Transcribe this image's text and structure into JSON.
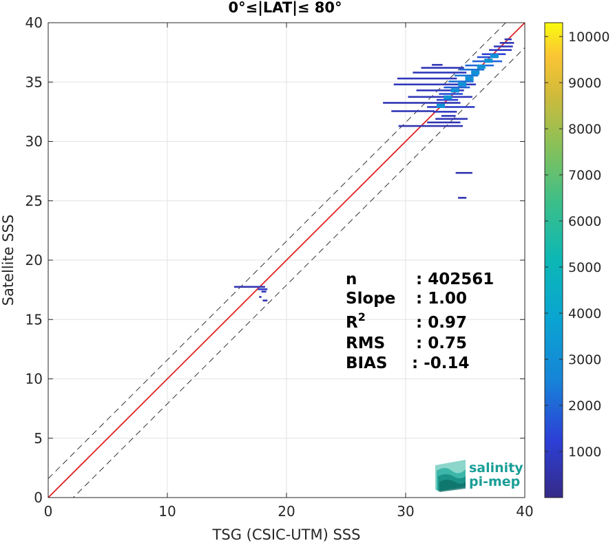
{
  "chart_data": {
    "type": "heatmap",
    "title": "0°≤|LAT|≤ 80°",
    "xlabel": "TSG (CSIC-UTM) SSS",
    "ylabel": "Satellite SSS",
    "xlim": [
      0,
      40
    ],
    "ylim": [
      0,
      40
    ],
    "xticks": [
      "0",
      "10",
      "20",
      "30",
      "40"
    ],
    "yticks": [
      "0",
      "5",
      "10",
      "15",
      "20",
      "25",
      "30",
      "35",
      "40"
    ],
    "grid": true,
    "reference_lines": [
      {
        "kind": "one-to-one",
        "intercept": 0,
        "slope": 1,
        "color": "#e02020",
        "style": "solid"
      },
      {
        "kind": "offset-upper",
        "intercept": 1.6,
        "slope": 1,
        "color": "#333333",
        "style": "dashed"
      },
      {
        "kind": "offset-lower",
        "intercept": -2.1,
        "slope": 1,
        "color": "#333333",
        "style": "dashed"
      }
    ],
    "colorbar": {
      "min": 0,
      "max": 10300,
      "ticks": [
        "1000",
        "2000",
        "3000",
        "4000",
        "5000",
        "6000",
        "7000",
        "8000",
        "9000",
        "10000"
      ],
      "tick_values": [
        1000,
        2000,
        3000,
        4000,
        5000,
        6000,
        7000,
        8000,
        9000,
        10000
      ],
      "colormap": "parula"
    },
    "density_cells": [
      {
        "x0": 15.6,
        "x1": 18.2,
        "y": 17.75,
        "count": 150
      },
      {
        "x0": 17.6,
        "x1": 18.4,
        "y": 17.55,
        "count": 350
      },
      {
        "x0": 17.9,
        "x1": 18.3,
        "y": 17.35,
        "count": 200
      },
      {
        "x0": 17.7,
        "x1": 17.9,
        "y": 16.9,
        "count": 120
      },
      {
        "x0": 18.0,
        "x1": 18.4,
        "y": 16.6,
        "count": 120
      },
      {
        "x0": 34.2,
        "x1": 35.6,
        "y": 27.35,
        "count": 120
      },
      {
        "x0": 34.4,
        "x1": 35.1,
        "y": 25.25,
        "count": 120
      },
      {
        "x0": 29.4,
        "x1": 34.8,
        "y": 31.3,
        "count": 150
      },
      {
        "x0": 31.8,
        "x1": 34.6,
        "y": 31.6,
        "count": 150
      },
      {
        "x0": 32.5,
        "x1": 35.2,
        "y": 31.9,
        "count": 200
      },
      {
        "x0": 33.0,
        "x1": 34.2,
        "y": 32.15,
        "count": 250
      },
      {
        "x0": 32.3,
        "x1": 34.3,
        "y": 32.5,
        "count": 300
      },
      {
        "x0": 28.8,
        "x1": 32.4,
        "y": 32.55,
        "count": 180
      },
      {
        "x0": 31.8,
        "x1": 35.8,
        "y": 32.9,
        "count": 350
      },
      {
        "x0": 28.1,
        "x1": 34.6,
        "y": 33.25,
        "count": 180
      },
      {
        "x0": 32.6,
        "x1": 34.4,
        "y": 33.5,
        "count": 500
      },
      {
        "x0": 30.2,
        "x1": 35.6,
        "y": 33.75,
        "count": 220
      },
      {
        "x0": 32.8,
        "x1": 34.8,
        "y": 34.0,
        "count": 700
      },
      {
        "x0": 30.9,
        "x1": 34.9,
        "y": 34.3,
        "count": 250
      },
      {
        "x0": 33.2,
        "x1": 35.4,
        "y": 34.55,
        "count": 900
      },
      {
        "x0": 29.0,
        "x1": 35.9,
        "y": 34.8,
        "count": 250
      },
      {
        "x0": 33.6,
        "x1": 35.7,
        "y": 35.05,
        "count": 1100
      },
      {
        "x0": 29.3,
        "x1": 34.3,
        "y": 35.3,
        "count": 250
      },
      {
        "x0": 34.1,
        "x1": 36.1,
        "y": 35.55,
        "count": 1200
      },
      {
        "x0": 30.6,
        "x1": 35.1,
        "y": 35.8,
        "count": 250
      },
      {
        "x0": 34.5,
        "x1": 36.6,
        "y": 36.05,
        "count": 1100
      },
      {
        "x0": 31.3,
        "x1": 34.9,
        "y": 36.2,
        "count": 200
      },
      {
        "x0": 32.2,
        "x1": 33.1,
        "y": 36.45,
        "count": 200
      },
      {
        "x0": 35.0,
        "x1": 37.4,
        "y": 36.4,
        "count": 1000
      },
      {
        "x0": 35.6,
        "x1": 38.1,
        "y": 36.75,
        "count": 900
      },
      {
        "x0": 36.0,
        "x1": 37.8,
        "y": 37.1,
        "count": 700
      },
      {
        "x0": 36.4,
        "x1": 38.4,
        "y": 37.35,
        "count": 500
      },
      {
        "x0": 37.0,
        "x1": 38.9,
        "y": 37.7,
        "count": 350
      },
      {
        "x0": 37.4,
        "x1": 39.0,
        "y": 38.0,
        "count": 250
      },
      {
        "x0": 37.9,
        "x1": 39.1,
        "y": 38.3,
        "count": 150
      },
      {
        "x0": 38.3,
        "x1": 38.9,
        "y": 38.6,
        "count": 120
      }
    ],
    "stats": [
      {
        "name": "n",
        "value": ": 402561"
      },
      {
        "name": "Slope",
        "value": ": 1.00"
      },
      {
        "name": "R",
        "sup": "2",
        "value": ": 0.97"
      },
      {
        "name": "RMS",
        "value": ": 0.75"
      },
      {
        "name": "BIAS",
        "value": ": -0.14"
      }
    ]
  },
  "logo": {
    "line1": "salinity",
    "line2": "pi-mep",
    "color": "#1a9e96"
  }
}
